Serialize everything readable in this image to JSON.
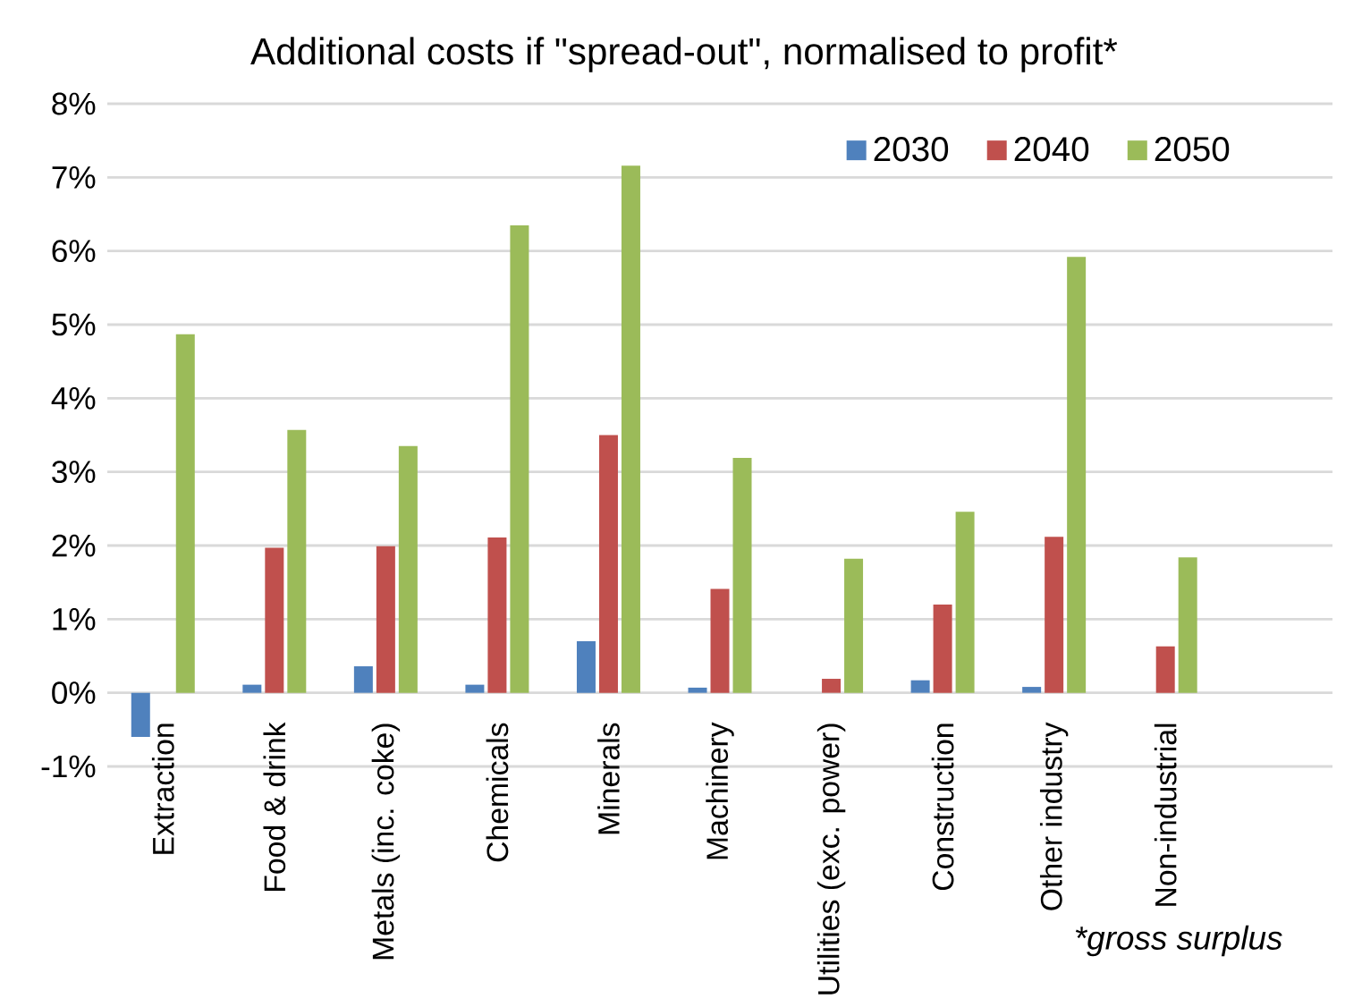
{
  "chart_data": {
    "type": "bar",
    "title": "Additional costs if \"spread-out\", normalised to profit*",
    "categories": [
      "Extraction",
      "Food & drink",
      "Metals (inc. coke)",
      "Chemicals",
      "Minerals",
      "Machinery",
      "Utilities (exc. power)",
      "Construction",
      "Other industry",
      "Non-industrial",
      null
    ],
    "series": [
      {
        "name": "2030",
        "color": "#4f81bd",
        "values": [
          -0.6,
          0.11,
          0.36,
          0.11,
          0.7,
          0.07,
          0,
          0.17,
          0.08,
          0,
          null
        ]
      },
      {
        "name": "2040",
        "color": "#c0504d",
        "values": [
          0,
          1.97,
          1.99,
          2.11,
          3.5,
          1.41,
          0.19,
          1.2,
          2.12,
          0.63,
          null
        ]
      },
      {
        "name": "2050",
        "color": "#9bbb59",
        "values": [
          4.87,
          3.57,
          3.35,
          6.35,
          7.16,
          3.19,
          1.82,
          2.46,
          5.92,
          1.84,
          null
        ]
      }
    ],
    "ylim": [
      -1,
      8
    ],
    "yticks": [
      {
        "value": -1,
        "label": "-1%"
      },
      {
        "value": 0,
        "label": "0%"
      },
      {
        "value": 1,
        "label": "1%"
      },
      {
        "value": 2,
        "label": "2%"
      },
      {
        "value": 3,
        "label": "3%"
      },
      {
        "value": 4,
        "label": "4%"
      },
      {
        "value": 5,
        "label": "5%"
      },
      {
        "value": 6,
        "label": "6%"
      },
      {
        "value": 7,
        "label": "7%"
      },
      {
        "value": 8,
        "label": "8%"
      }
    ],
    "grid": "y",
    "legend": "top right",
    "annotations": [
      "*gross surplus"
    ]
  }
}
